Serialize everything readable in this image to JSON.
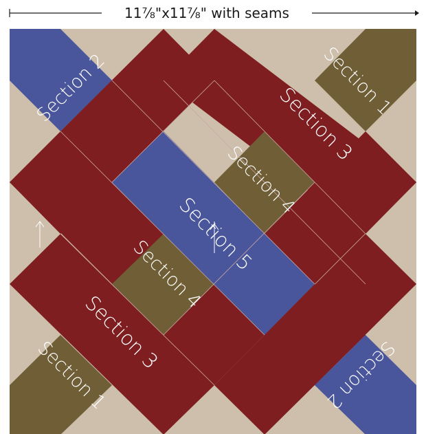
{
  "dimension_label": "11⅞\"x11⅞\" with seams",
  "colors": {
    "background": "#cdbfab",
    "red": "#7f1e20",
    "blue": "#4a569b",
    "olive": "#6f5e36",
    "seam": "#c9a8a2",
    "text": "#ffffff"
  },
  "sections": {
    "s1_top": "Section 1",
    "s1_bottom": "Section 1",
    "s2_top": "Section 2",
    "s2_bottom": "Section 2",
    "s3_top": "Section 3",
    "s3_bottom": "Section 3",
    "s4_top": "Section 4",
    "s4_bottom": "Section 4",
    "s5": "Section 5"
  }
}
